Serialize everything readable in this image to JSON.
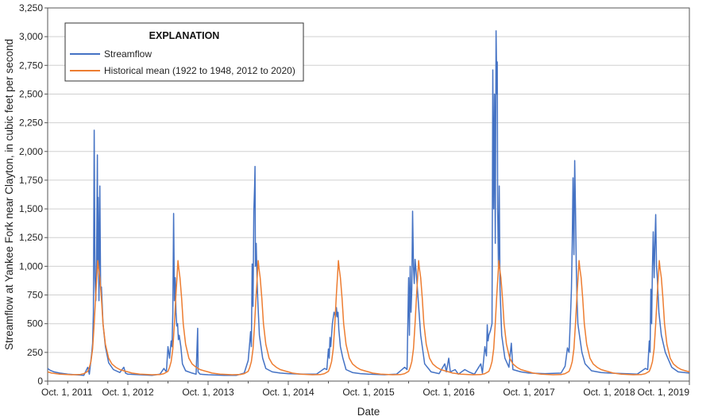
{
  "chart_data": {
    "type": "line",
    "title": "",
    "xlabel": "Date",
    "ylabel": "Streamflow at Yankee Fork near Clayton, in cubic feet per second",
    "ylim": [
      0,
      3250
    ],
    "xlim_water_years": [
      0,
      8
    ],
    "y_ticks": [
      0,
      250,
      500,
      750,
      1000,
      1250,
      1500,
      1750,
      2000,
      2250,
      2500,
      2750,
      3000,
      3250
    ],
    "y_tick_labels": [
      "0",
      "250",
      "500",
      "750",
      "1,000",
      "1,250",
      "1,500",
      "1,750",
      "2,000",
      "2,250",
      "2,500",
      "2,750",
      "3,000",
      "3,250"
    ],
    "x_tick_labels": [
      "Oct. 1, 2011",
      "Oct. 1, 2012",
      "Oct. 1, 2013",
      "Oct. 1, 2014",
      "Oct. 1, 2015",
      "Oct. 1, 2016",
      "Oct. 1, 2017",
      "Oct. 1, 2018",
      "Oct. 1, 2019"
    ],
    "grid": true,
    "legend": {
      "title": "EXPLANATION",
      "placement": "top-left",
      "entries": [
        {
          "label": "Streamflow",
          "color": "#4472c4"
        },
        {
          "label": "Historical mean (1922 to 1948, 2012 to 2020)",
          "color": "#ed7d31"
        }
      ]
    },
    "series": [
      {
        "name": "Streamflow",
        "color": "#4472c4",
        "x_units": "years since Oct. 1, 2011",
        "points": [
          [
            0.0,
            110
          ],
          [
            0.03,
            95
          ],
          [
            0.08,
            80
          ],
          [
            0.15,
            70
          ],
          [
            0.25,
            60
          ],
          [
            0.35,
            55
          ],
          [
            0.45,
            50
          ],
          [
            0.5,
            120
          ],
          [
            0.52,
            60
          ],
          [
            0.55,
            250
          ],
          [
            0.56,
            330
          ],
          [
            0.57,
            600
          ],
          [
            0.58,
            2185
          ],
          [
            0.59,
            900
          ],
          [
            0.6,
            700
          ],
          [
            0.61,
            1060
          ],
          [
            0.62,
            1970
          ],
          [
            0.625,
            1000
          ],
          [
            0.63,
            1600
          ],
          [
            0.64,
            700
          ],
          [
            0.65,
            1700
          ],
          [
            0.66,
            800
          ],
          [
            0.67,
            820
          ],
          [
            0.69,
            500
          ],
          [
            0.72,
            300
          ],
          [
            0.76,
            160
          ],
          [
            0.82,
            100
          ],
          [
            0.9,
            75
          ],
          [
            0.95,
            120
          ],
          [
            0.97,
            70
          ],
          [
            1.0,
            60
          ],
          [
            1.15,
            55
          ],
          [
            1.3,
            50
          ],
          [
            1.4,
            60
          ],
          [
            1.45,
            110
          ],
          [
            1.48,
            80
          ],
          [
            1.5,
            300
          ],
          [
            1.52,
            200
          ],
          [
            1.54,
            350
          ],
          [
            1.55,
            300
          ],
          [
            1.56,
            600
          ],
          [
            1.57,
            1460
          ],
          [
            1.58,
            700
          ],
          [
            1.59,
            900
          ],
          [
            1.6,
            600
          ],
          [
            1.61,
            480
          ],
          [
            1.62,
            500
          ],
          [
            1.63,
            360
          ],
          [
            1.64,
            400
          ],
          [
            1.66,
            300
          ],
          [
            1.68,
            150
          ],
          [
            1.72,
            90
          ],
          [
            1.8,
            70
          ],
          [
            1.85,
            60
          ],
          [
            1.87,
            460
          ],
          [
            1.875,
            80
          ],
          [
            1.9,
            60
          ],
          [
            2.0,
            55
          ],
          [
            2.2,
            50
          ],
          [
            2.35,
            50
          ],
          [
            2.45,
            70
          ],
          [
            2.5,
            180
          ],
          [
            2.52,
            340
          ],
          [
            2.53,
            430
          ],
          [
            2.54,
            300
          ],
          [
            2.55,
            1020
          ],
          [
            2.56,
            650
          ],
          [
            2.57,
            1480
          ],
          [
            2.58,
            1700
          ],
          [
            2.585,
            1870
          ],
          [
            2.59,
            1000
          ],
          [
            2.6,
            1200
          ],
          [
            2.61,
            900
          ],
          [
            2.62,
            700
          ],
          [
            2.64,
            400
          ],
          [
            2.68,
            200
          ],
          [
            2.72,
            110
          ],
          [
            2.8,
            80
          ],
          [
            2.9,
            70
          ],
          [
            3.0,
            65
          ],
          [
            3.2,
            60
          ],
          [
            3.35,
            60
          ],
          [
            3.45,
            110
          ],
          [
            3.48,
            100
          ],
          [
            3.5,
            280
          ],
          [
            3.51,
            200
          ],
          [
            3.52,
            380
          ],
          [
            3.53,
            300
          ],
          [
            3.55,
            500
          ],
          [
            3.57,
            600
          ],
          [
            3.59,
            560
          ],
          [
            3.6,
            640
          ],
          [
            3.61,
            560
          ],
          [
            3.62,
            600
          ],
          [
            3.63,
            450
          ],
          [
            3.65,
            300
          ],
          [
            3.68,
            200
          ],
          [
            3.72,
            100
          ],
          [
            3.8,
            75
          ],
          [
            3.9,
            65
          ],
          [
            4.0,
            60
          ],
          [
            4.2,
            55
          ],
          [
            4.35,
            60
          ],
          [
            4.45,
            120
          ],
          [
            4.48,
            100
          ],
          [
            4.5,
            900
          ],
          [
            4.51,
            400
          ],
          [
            4.52,
            1000
          ],
          [
            4.53,
            600
          ],
          [
            4.54,
            800
          ],
          [
            4.55,
            1480
          ],
          [
            4.56,
            1000
          ],
          [
            4.57,
            850
          ],
          [
            4.58,
            1060
          ],
          [
            4.6,
            900
          ],
          [
            4.62,
            700
          ],
          [
            4.65,
            400
          ],
          [
            4.7,
            150
          ],
          [
            4.78,
            80
          ],
          [
            4.88,
            65
          ],
          [
            4.95,
            150
          ],
          [
            4.97,
            80
          ],
          [
            5.0,
            200
          ],
          [
            5.02,
            80
          ],
          [
            5.08,
            100
          ],
          [
            5.12,
            60
          ],
          [
            5.2,
            100
          ],
          [
            5.25,
            80
          ],
          [
            5.32,
            60
          ],
          [
            5.4,
            150
          ],
          [
            5.42,
            70
          ],
          [
            5.45,
            300
          ],
          [
            5.47,
            220
          ],
          [
            5.48,
            490
          ],
          [
            5.49,
            350
          ],
          [
            5.5,
            400
          ],
          [
            5.52,
            440
          ],
          [
            5.54,
            500
          ],
          [
            5.55,
            2710
          ],
          [
            5.56,
            1500
          ],
          [
            5.57,
            2500
          ],
          [
            5.58,
            1200
          ],
          [
            5.59,
            3050
          ],
          [
            5.6,
            2500
          ],
          [
            5.605,
            2780
          ],
          [
            5.61,
            1500
          ],
          [
            5.62,
            1000
          ],
          [
            5.63,
            1700
          ],
          [
            5.64,
            800
          ],
          [
            5.66,
            400
          ],
          [
            5.7,
            200
          ],
          [
            5.75,
            120
          ],
          [
            5.78,
            330
          ],
          [
            5.8,
            100
          ],
          [
            5.9,
            80
          ],
          [
            6.0,
            70
          ],
          [
            6.2,
            65
          ],
          [
            6.4,
            70
          ],
          [
            6.45,
            130
          ],
          [
            6.48,
            290
          ],
          [
            6.5,
            250
          ],
          [
            6.52,
            600
          ],
          [
            6.53,
            800
          ],
          [
            6.54,
            1200
          ],
          [
            6.55,
            1770
          ],
          [
            6.56,
            1100
          ],
          [
            6.57,
            1920
          ],
          [
            6.58,
            1500
          ],
          [
            6.59,
            1000
          ],
          [
            6.6,
            700
          ],
          [
            6.61,
            500
          ],
          [
            6.63,
            400
          ],
          [
            6.66,
            250
          ],
          [
            6.7,
            150
          ],
          [
            6.78,
            90
          ],
          [
            6.9,
            75
          ],
          [
            7.0,
            70
          ],
          [
            7.2,
            65
          ],
          [
            7.35,
            60
          ],
          [
            7.45,
            110
          ],
          [
            7.48,
            100
          ],
          [
            7.5,
            350
          ],
          [
            7.51,
            250
          ],
          [
            7.52,
            800
          ],
          [
            7.53,
            500
          ],
          [
            7.54,
            1000
          ],
          [
            7.55,
            1300
          ],
          [
            7.56,
            900
          ],
          [
            7.57,
            1200
          ],
          [
            7.58,
            1450
          ],
          [
            7.59,
            1000
          ],
          [
            7.6,
            900
          ],
          [
            7.62,
            600
          ],
          [
            7.65,
            400
          ],
          [
            7.7,
            250
          ],
          [
            7.78,
            120
          ],
          [
            7.86,
            80
          ],
          [
            7.94,
            75
          ],
          [
            8.0,
            70
          ]
        ]
      },
      {
        "name": "Historical mean (1922 to 1948, 2012 to 2020)",
        "color": "#ed7d31",
        "x_units": "years since Oct. 1, 2011",
        "repeat_each_year": true,
        "points": [
          [
            0.0,
            80
          ],
          [
            0.05,
            70
          ],
          [
            0.15,
            60
          ],
          [
            0.3,
            55
          ],
          [
            0.4,
            57
          ],
          [
            0.45,
            65
          ],
          [
            0.5,
            85
          ],
          [
            0.52,
            120
          ],
          [
            0.54,
            170
          ],
          [
            0.56,
            280
          ],
          [
            0.58,
            500
          ],
          [
            0.6,
            760
          ],
          [
            0.615,
            930
          ],
          [
            0.625,
            1050
          ],
          [
            0.635,
            980
          ],
          [
            0.65,
            900
          ],
          [
            0.67,
            720
          ],
          [
            0.69,
            500
          ],
          [
            0.72,
            320
          ],
          [
            0.76,
            200
          ],
          [
            0.8,
            150
          ],
          [
            0.85,
            120
          ],
          [
            0.9,
            100
          ],
          [
            0.95,
            90
          ],
          [
            1.0,
            80
          ]
        ]
      }
    ]
  }
}
